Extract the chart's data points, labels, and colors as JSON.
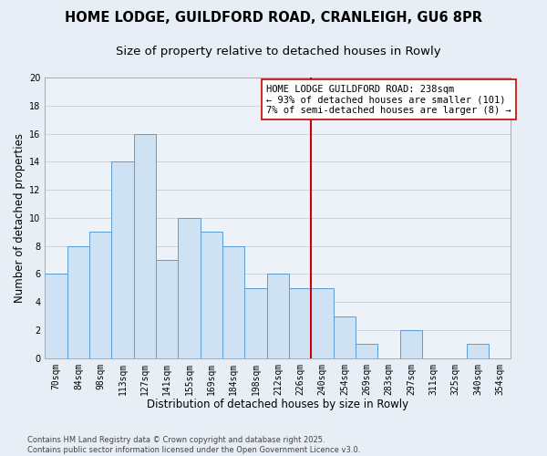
{
  "title": "HOME LODGE, GUILDFORD ROAD, CRANLEIGH, GU6 8PR",
  "subtitle": "Size of property relative to detached houses in Rowly",
  "xlabel": "Distribution of detached houses by size in Rowly",
  "ylabel": "Number of detached properties",
  "bar_labels": [
    "70sqm",
    "84sqm",
    "98sqm",
    "113sqm",
    "127sqm",
    "141sqm",
    "155sqm",
    "169sqm",
    "184sqm",
    "198sqm",
    "212sqm",
    "226sqm",
    "240sqm",
    "254sqm",
    "269sqm",
    "283sqm",
    "297sqm",
    "311sqm",
    "325sqm",
    "340sqm",
    "354sqm"
  ],
  "bar_values": [
    6,
    8,
    9,
    14,
    16,
    7,
    10,
    9,
    8,
    5,
    6,
    5,
    5,
    3,
    1,
    0,
    2,
    0,
    0,
    1,
    0
  ],
  "bar_color": "#cfe2f3",
  "bar_edge_color": "#5b9bd5",
  "grid_color": "#c8d4e0",
  "background_color": "#e8eef5",
  "plot_bg_color": "#edf2f9",
  "vline_color": "#cc0000",
  "vline_x": 11.5,
  "annotation_text": "HOME LODGE GUILDFORD ROAD: 238sqm\n← 93% of detached houses are smaller (101)\n7% of semi-detached houses are larger (8) →",
  "ylim": [
    0,
    20
  ],
  "yticks": [
    0,
    2,
    4,
    6,
    8,
    10,
    12,
    14,
    16,
    18,
    20
  ],
  "footer_line1": "Contains HM Land Registry data © Crown copyright and database right 2025.",
  "footer_line2": "Contains public sector information licensed under the Open Government Licence v3.0.",
  "title_fontsize": 10.5,
  "subtitle_fontsize": 9.5,
  "axis_label_fontsize": 8.5,
  "tick_fontsize": 7,
  "annotation_fontsize": 7.5,
  "footer_fontsize": 6
}
